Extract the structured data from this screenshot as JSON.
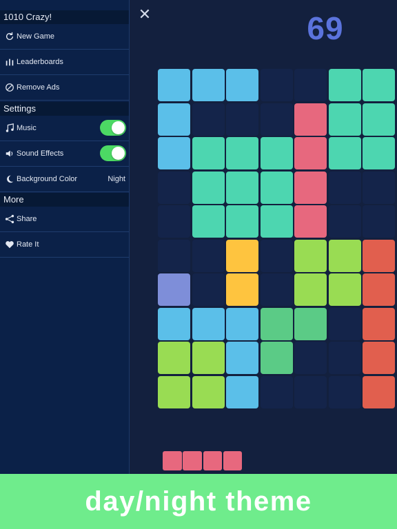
{
  "menu": {
    "title": "1010 Crazy!",
    "items_top": [
      {
        "icon": "refresh-icon",
        "label": "New Game"
      },
      {
        "icon": "bar-chart-icon",
        "label": "Leaderboards"
      },
      {
        "icon": "no-sign-icon",
        "label": "Remove Ads"
      }
    ],
    "settings_header": "Settings",
    "music": {
      "icon": "music-note-icon",
      "label": "Music",
      "on": true
    },
    "sound": {
      "icon": "speaker-icon",
      "label": "Sound Effects",
      "on": true
    },
    "background": {
      "icon": "moon-icon",
      "label": "Background Color",
      "value": "Night"
    },
    "more_header": "More",
    "share": {
      "icon": "share-icon",
      "label": "Share"
    },
    "rate": {
      "icon": "heart-icon",
      "label": "Rate It"
    }
  },
  "game": {
    "score": "69",
    "close_icon": "close-icon",
    "colors": {
      "E": "#14244a",
      "B": "#5bbfe9",
      "T": "#4dd6b0",
      "P": "#e7687e",
      "Y": "#fec43f",
      "L": "#99dc53",
      "R": "#e15f4e",
      "V": "#7e8ed9",
      "G": "#5bcb86"
    },
    "board": [
      "BBBEETTT",
      "BEEEPTTT",
      "BTTTPTTT",
      "ETTTPEET",
      "ETTTPEET",
      "EEYELLRL",
      "VEYELLRL",
      "BBBGGERE",
      "LLBGEERE",
      "LLBEEERE"
    ],
    "next_piece": {
      "color": "#e7687e",
      "length": 4
    }
  },
  "banner": {
    "text": "day/night theme",
    "color": "#6fec8c"
  }
}
